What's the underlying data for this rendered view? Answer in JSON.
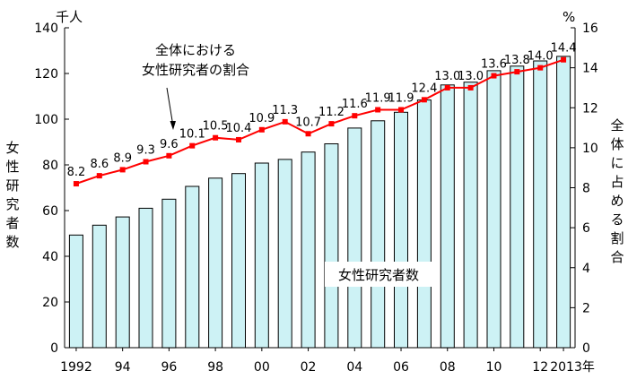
{
  "chart_data": {
    "type": "bar",
    "x": [
      "1992",
      "1993",
      "1994",
      "1995",
      "1996",
      "1997",
      "1998",
      "1999",
      "2000",
      "2001",
      "2002",
      "2003",
      "2004",
      "2005",
      "2006",
      "2007",
      "2008",
      "2009",
      "2010",
      "2011",
      "2012",
      "2013"
    ],
    "x_tick_labels": [
      "1992",
      "94",
      "96",
      "98",
      "00",
      "02",
      "04",
      "06",
      "08",
      "10",
      "12",
      "2013年"
    ],
    "left_axis": {
      "label": "女性研究者数",
      "unit": "千人",
      "ylim": [
        0,
        140
      ],
      "ticks": [
        0,
        20,
        40,
        60,
        80,
        100,
        120,
        140
      ]
    },
    "right_axis": {
      "label": "全体に占める割合",
      "unit": "%",
      "ylim": [
        0,
        16
      ],
      "ticks": [
        0,
        2,
        4,
        6,
        8,
        10,
        12,
        14,
        16
      ]
    },
    "series": [
      {
        "name": "女性研究者数",
        "type": "bar",
        "axis": "left",
        "color": "#cdf2f5",
        "values": [
          49.3,
          53.6,
          57.2,
          61.0,
          65.0,
          70.6,
          74.2,
          76.2,
          80.8,
          82.4,
          85.6,
          89.2,
          96.1,
          99.3,
          103.0,
          108.4,
          115.0,
          116.2,
          121.2,
          123.2,
          125.5,
          127.5
        ]
      },
      {
        "name": "全体における女性研究者の割合",
        "type": "line",
        "axis": "right",
        "color": "#ff0000",
        "values": [
          8.2,
          8.6,
          8.9,
          9.3,
          9.6,
          10.1,
          10.5,
          10.4,
          10.9,
          11.3,
          10.7,
          11.2,
          11.6,
          11.9,
          11.9,
          12.4,
          13.0,
          13.0,
          13.6,
          13.8,
          14.0,
          14.4
        ],
        "labels": [
          "8.2",
          "8.6",
          "8.9",
          "9.3",
          "9.6",
          "10.1",
          "10.5",
          "10.4",
          "10.9",
          "11.3",
          "10.7",
          "11.2",
          "11.6",
          "11.9",
          "11.9",
          "12.4",
          "13.0",
          "13.0",
          "13.6",
          "13.8",
          "14.0",
          "14.4"
        ]
      }
    ],
    "annotations": {
      "line_label": [
        "全体における",
        "女性研究者の割合"
      ],
      "bar_label": "女性研究者数"
    },
    "grid": false
  }
}
